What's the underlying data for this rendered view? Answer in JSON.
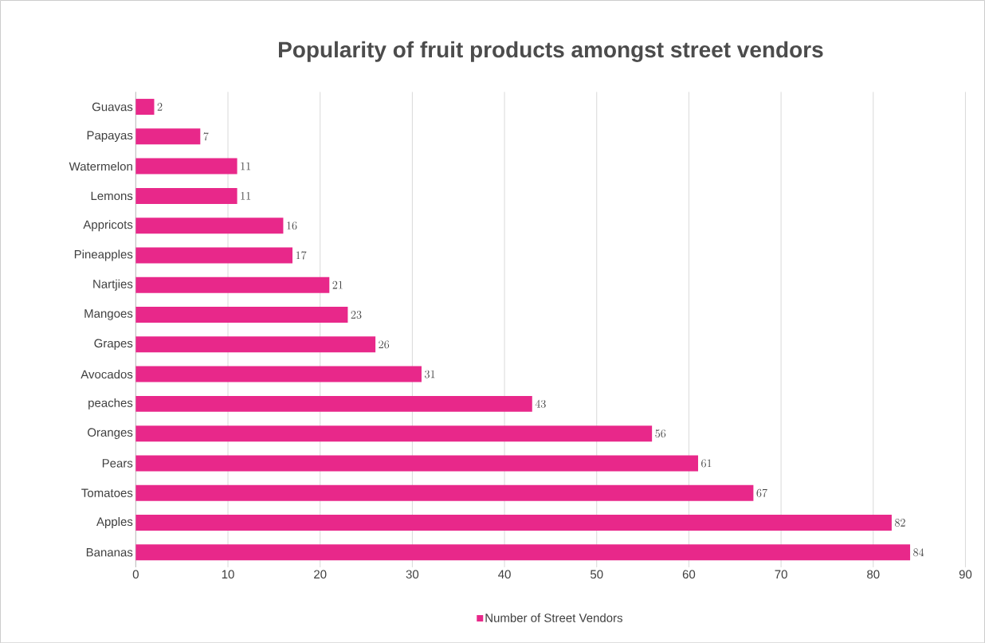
{
  "chart_data": {
    "type": "bar",
    "orientation": "horizontal",
    "title": "Popularity of fruit products amongst street vendors",
    "categories": [
      "Guavas",
      "Papayas",
      "Watermelon",
      "Lemons",
      "Appricots",
      "Pineapples",
      "Nartjies",
      "Mangoes",
      "Grapes",
      "Avocados",
      "peaches",
      "Oranges",
      "Pears",
      "Tomatoes",
      "Apples",
      "Bananas"
    ],
    "series": [
      {
        "name": "Number of Street Vendors",
        "color": "#e8288a",
        "values": [
          2,
          7,
          11,
          11,
          16,
          17,
          21,
          23,
          26,
          31,
          43,
          56,
          61,
          67,
          82,
          84
        ]
      }
    ],
    "xlim": [
      0,
      90
    ],
    "xticks": [
      0,
      10,
      20,
      30,
      40,
      50,
      60,
      70,
      80,
      90
    ],
    "grid": "x",
    "legend": "bottom",
    "data_labels": true
  }
}
